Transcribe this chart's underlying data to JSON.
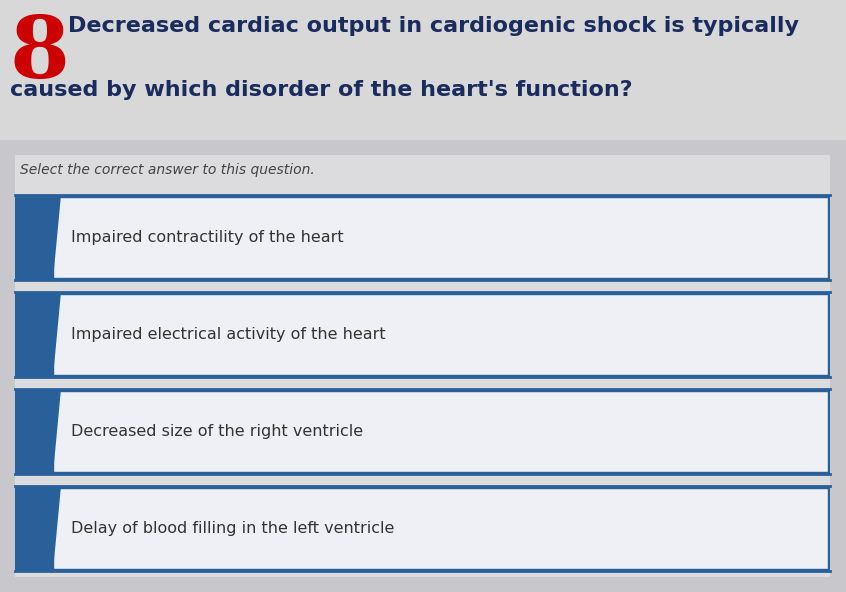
{
  "question_number": "8",
  "question_text_line1": "Decreased cardiac output in cardiogenic shock is typically",
  "question_text_line2": "caused by which disorder of the heart's function?",
  "instruction": "Select the correct answer to this question.",
  "answers": [
    "Impaired contractility of the heart",
    "Impaired electrical activity of the heart",
    "Decreased size of the right ventricle",
    "Delay of blood filling in the left ventricle"
  ],
  "bg_color": "#d0d0d0",
  "question_number_color": "#cc0000",
  "question_text_color": "#1a2b5e",
  "instruction_color": "#444444",
  "answer_text_color": "#333333",
  "answer_box_bg": "#f0f0f0",
  "answer_box_border_color": "#2a6099",
  "answer_left_bar_color": "#2a6099",
  "answer_inner_bg": "#f5f5f8"
}
